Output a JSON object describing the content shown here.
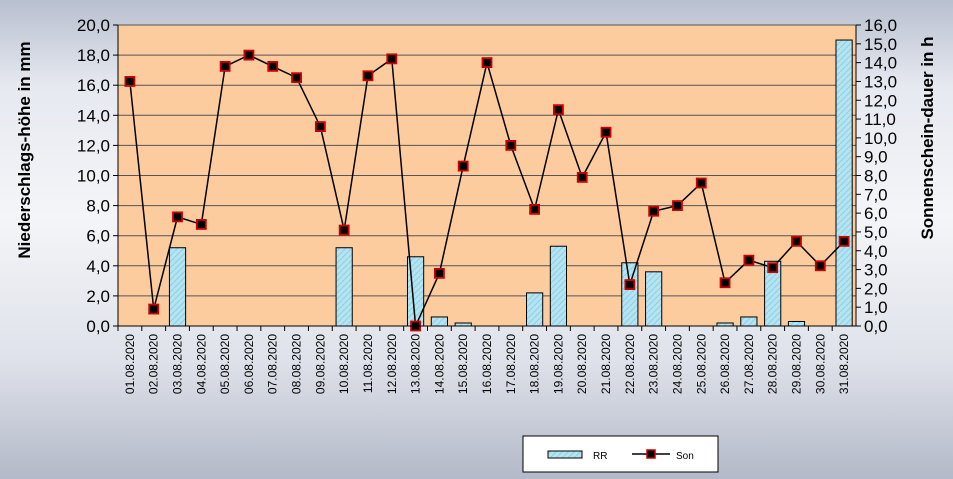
{
  "chart_data": {
    "type": "bar+line",
    "categories": [
      "01.08.2020",
      "02.08.2020",
      "03.08.2020",
      "04.08.2020",
      "05.08.2020",
      "06.08.2020",
      "07.08.2020",
      "08.08.2020",
      "09.08.2020",
      "10.08.2020",
      "11.08.2020",
      "12.08.2020",
      "13.08.2020",
      "14.08.2020",
      "15.08.2020",
      "16.08.2020",
      "17.08.2020",
      "18.08.2020",
      "19.08.2020",
      "20.08.2020",
      "21.08.2020",
      "22.08.2020",
      "23.08.2020",
      "24.08.2020",
      "25.08.2020",
      "26.08.2020",
      "27.08.2020",
      "28.08.2020",
      "29.08.2020",
      "30.08.2020",
      "31.08.2020"
    ],
    "ylabel_left": "Niederschlags-höhe in mm",
    "ylabel_right": "Sonnenschein-dauer in h",
    "ylim_left": [
      0,
      20
    ],
    "ylim_right": [
      0,
      16
    ],
    "yticks_left": [
      "0,0",
      "2,0",
      "4,0",
      "6,0",
      "8,0",
      "10,0",
      "12,0",
      "14,0",
      "16,0",
      "18,0",
      "20,0"
    ],
    "yticks_right": [
      "0,0",
      "1,0",
      "2,0",
      "3,0",
      "4,0",
      "5,0",
      "6,0",
      "7,0",
      "8,0",
      "9,0",
      "10,0",
      "11,0",
      "12,0",
      "13,0",
      "14,0",
      "15,0",
      "16,0"
    ],
    "series": [
      {
        "name": "RR",
        "type": "bar",
        "axis": "left",
        "values": [
          0,
          0,
          5.2,
          0,
          0,
          0,
          0,
          0,
          0,
          5.2,
          0,
          0,
          4.6,
          0.6,
          0.2,
          0,
          0,
          2.2,
          5.3,
          0,
          0,
          4.2,
          3.6,
          0,
          0,
          0.2,
          0.6,
          4.3,
          0.3,
          0,
          19.0
        ]
      },
      {
        "name": "Son",
        "type": "line",
        "axis": "right",
        "values": [
          13.0,
          0.9,
          5.8,
          5.4,
          13.8,
          14.4,
          13.8,
          13.2,
          10.6,
          5.1,
          13.3,
          14.2,
          0.0,
          2.8,
          8.5,
          14.0,
          9.6,
          6.2,
          11.5,
          7.9,
          10.3,
          2.2,
          6.1,
          6.4,
          7.6,
          2.3,
          3.5,
          3.1,
          4.5,
          3.2,
          4.5
        ]
      }
    ],
    "grid": "horizontal",
    "legend_position": "bottom-center",
    "colors": {
      "plot_background": "#fccb9e",
      "bar_fill": "#b4e4f2",
      "bar_stroke": "#000000",
      "line": "#000000",
      "marker_fill": "#000000",
      "marker_stroke": "#cc0000"
    }
  }
}
